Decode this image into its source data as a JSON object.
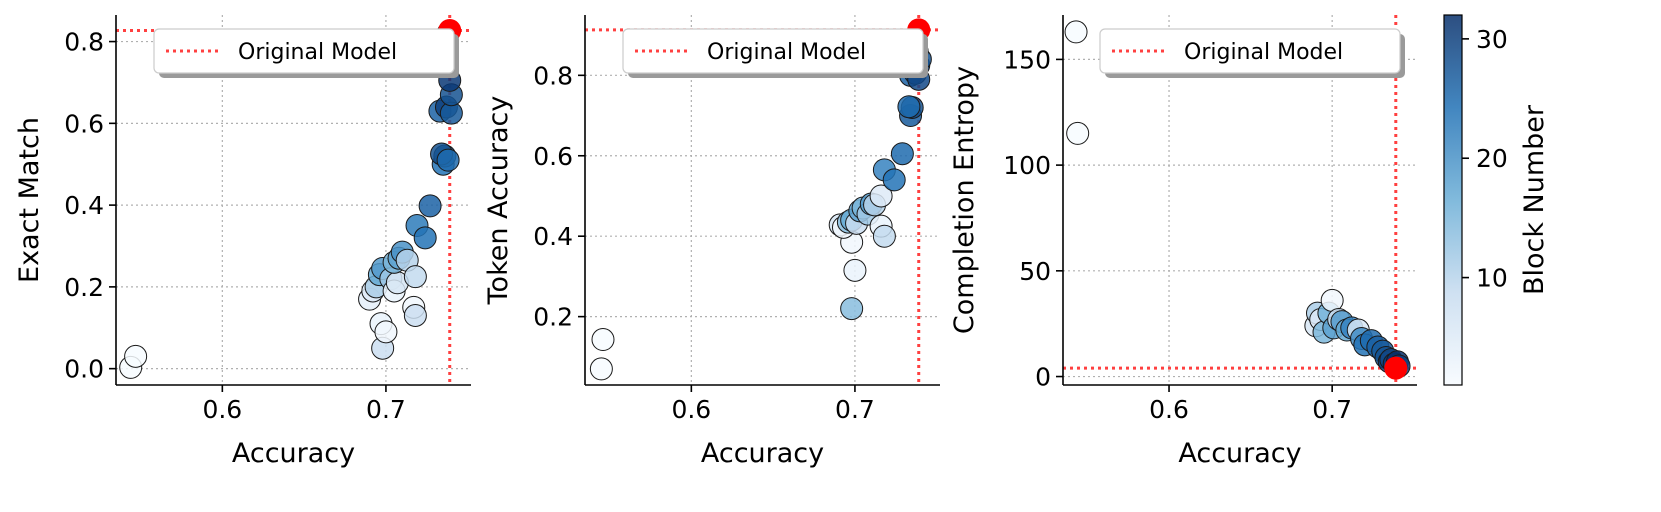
{
  "chart_data": [
    {
      "type": "scatter",
      "xlabel": "Accuracy",
      "ylabel": "Exact Match",
      "xlim": [
        0.535,
        0.752
      ],
      "ylim": [
        -0.04,
        0.865
      ],
      "xticks": [
        0.6,
        0.7
      ],
      "xtick_labels": [
        "0.6",
        "0.7"
      ],
      "yticks": [
        0.0,
        0.2,
        0.4,
        0.6,
        0.8
      ],
      "ytick_labels": [
        "0.0",
        "0.2",
        "0.4",
        "0.6",
        "0.8"
      ],
      "grid": true,
      "legend": {
        "entry": "Original Model",
        "placement": "top-right"
      },
      "original_model": {
        "x": 0.739,
        "y": 0.827
      },
      "points": [
        {
          "x": 0.544,
          "y": 0.003,
          "block": 1
        },
        {
          "x": 0.547,
          "y": 0.03,
          "block": 1
        },
        {
          "x": 0.698,
          "y": 0.05,
          "block": 8
        },
        {
          "x": 0.697,
          "y": 0.11,
          "block": 3
        },
        {
          "x": 0.7,
          "y": 0.09,
          "block": 2
        },
        {
          "x": 0.717,
          "y": 0.15,
          "block": 2
        },
        {
          "x": 0.718,
          "y": 0.13,
          "block": 8
        },
        {
          "x": 0.69,
          "y": 0.17,
          "block": 4
        },
        {
          "x": 0.692,
          "y": 0.19,
          "block": 5
        },
        {
          "x": 0.694,
          "y": 0.2,
          "block": 11
        },
        {
          "x": 0.696,
          "y": 0.23,
          "block": 17
        },
        {
          "x": 0.698,
          "y": 0.245,
          "block": 19
        },
        {
          "x": 0.703,
          "y": 0.22,
          "block": 12
        },
        {
          "x": 0.705,
          "y": 0.19,
          "block": 3
        },
        {
          "x": 0.707,
          "y": 0.21,
          "block": 6
        },
        {
          "x": 0.705,
          "y": 0.26,
          "block": 15
        },
        {
          "x": 0.708,
          "y": 0.27,
          "block": 18
        },
        {
          "x": 0.71,
          "y": 0.285,
          "block": 20
        },
        {
          "x": 0.713,
          "y": 0.265,
          "block": 10
        },
        {
          "x": 0.718,
          "y": 0.225,
          "block": 9
        },
        {
          "x": 0.719,
          "y": 0.35,
          "block": 23
        },
        {
          "x": 0.724,
          "y": 0.32,
          "block": 24
        },
        {
          "x": 0.727,
          "y": 0.398,
          "block": 26
        },
        {
          "x": 0.735,
          "y": 0.5,
          "block": 24
        },
        {
          "x": 0.736,
          "y": 0.52,
          "block": 27
        },
        {
          "x": 0.734,
          "y": 0.525,
          "block": 28
        },
        {
          "x": 0.738,
          "y": 0.51,
          "block": 25
        },
        {
          "x": 0.733,
          "y": 0.63,
          "block": 26
        },
        {
          "x": 0.737,
          "y": 0.64,
          "block": 30
        },
        {
          "x": 0.74,
          "y": 0.625,
          "block": 27
        },
        {
          "x": 0.74,
          "y": 0.67,
          "block": 28
        },
        {
          "x": 0.739,
          "y": 0.705,
          "block": 31
        },
        {
          "x": 0.737,
          "y": 0.78,
          "block": 32
        },
        {
          "x": 0.738,
          "y": 0.82,
          "block": 29
        }
      ]
    },
    {
      "type": "scatter",
      "xlabel": "Accuracy",
      "ylabel": "Token Accuracy",
      "xlim": [
        0.535,
        0.752
      ],
      "ylim": [
        0.03,
        0.95
      ],
      "xticks": [
        0.6,
        0.7
      ],
      "xtick_labels": [
        "0.6",
        "0.7"
      ],
      "yticks": [
        0.2,
        0.4,
        0.6,
        0.8
      ],
      "ytick_labels": [
        "0.2",
        "0.4",
        "0.6",
        "0.8"
      ],
      "grid": true,
      "legend": {
        "entry": "Original Model",
        "placement": "top-right"
      },
      "original_model": {
        "x": 0.739,
        "y": 0.913
      },
      "points": [
        {
          "x": 0.545,
          "y": 0.07,
          "block": 1
        },
        {
          "x": 0.546,
          "y": 0.143,
          "block": 1
        },
        {
          "x": 0.698,
          "y": 0.22,
          "block": 14
        },
        {
          "x": 0.7,
          "y": 0.315,
          "block": 3
        },
        {
          "x": 0.698,
          "y": 0.385,
          "block": 2
        },
        {
          "x": 0.691,
          "y": 0.428,
          "block": 6
        },
        {
          "x": 0.693,
          "y": 0.422,
          "block": 2
        },
        {
          "x": 0.696,
          "y": 0.435,
          "block": 14
        },
        {
          "x": 0.698,
          "y": 0.44,
          "block": 17
        },
        {
          "x": 0.701,
          "y": 0.432,
          "block": 8
        },
        {
          "x": 0.703,
          "y": 0.463,
          "block": 18
        },
        {
          "x": 0.705,
          "y": 0.47,
          "block": 15
        },
        {
          "x": 0.708,
          "y": 0.455,
          "block": 12
        },
        {
          "x": 0.71,
          "y": 0.48,
          "block": 19
        },
        {
          "x": 0.712,
          "y": 0.478,
          "block": 10
        },
        {
          "x": 0.716,
          "y": 0.425,
          "block": 3
        },
        {
          "x": 0.718,
          "y": 0.4,
          "block": 9
        },
        {
          "x": 0.716,
          "y": 0.5,
          "block": 5
        },
        {
          "x": 0.718,
          "y": 0.565,
          "block": 22
        },
        {
          "x": 0.724,
          "y": 0.54,
          "block": 24
        },
        {
          "x": 0.729,
          "y": 0.605,
          "block": 25
        },
        {
          "x": 0.734,
          "y": 0.7,
          "block": 27
        },
        {
          "x": 0.735,
          "y": 0.72,
          "block": 28
        },
        {
          "x": 0.733,
          "y": 0.722,
          "block": 25
        },
        {
          "x": 0.734,
          "y": 0.8,
          "block": 26
        },
        {
          "x": 0.737,
          "y": 0.805,
          "block": 30
        },
        {
          "x": 0.739,
          "y": 0.79,
          "block": 29
        },
        {
          "x": 0.739,
          "y": 0.825,
          "block": 31
        },
        {
          "x": 0.74,
          "y": 0.84,
          "block": 28
        },
        {
          "x": 0.738,
          "y": 0.86,
          "block": 32
        },
        {
          "x": 0.737,
          "y": 0.89,
          "block": 30
        }
      ]
    },
    {
      "type": "scatter",
      "xlabel": "Accuracy",
      "ylabel": "Completion Entropy",
      "xlim": [
        0.535,
        0.752
      ],
      "ylim": [
        -4,
        171
      ],
      "xticks": [
        0.6,
        0.7
      ],
      "xtick_labels": [
        "0.6",
        "0.7"
      ],
      "yticks": [
        0,
        50,
        100,
        150
      ],
      "ytick_labels": [
        "0",
        "50",
        "100",
        "150"
      ],
      "grid": true,
      "legend": {
        "entry": "Original Model",
        "placement": "top-right"
      },
      "original_model": {
        "x": 0.739,
        "y": 4
      },
      "colorbar": {
        "label": "Block Number",
        "min": 1,
        "max": 32,
        "ticks": [
          10,
          20,
          30
        ],
        "tick_labels": [
          "10",
          "20",
          "30"
        ]
      },
      "points": [
        {
          "x": 0.543,
          "y": 163,
          "block": 1
        },
        {
          "x": 0.544,
          "y": 115,
          "block": 1
        },
        {
          "x": 0.69,
          "y": 24,
          "block": 6
        },
        {
          "x": 0.691,
          "y": 30,
          "block": 11
        },
        {
          "x": 0.693,
          "y": 27,
          "block": 5
        },
        {
          "x": 0.695,
          "y": 21,
          "block": 15
        },
        {
          "x": 0.698,
          "y": 30,
          "block": 16
        },
        {
          "x": 0.7,
          "y": 36,
          "block": 2
        },
        {
          "x": 0.701,
          "y": 23,
          "block": 18
        },
        {
          "x": 0.704,
          "y": 27,
          "block": 8
        },
        {
          "x": 0.706,
          "y": 26,
          "block": 19
        },
        {
          "x": 0.709,
          "y": 22,
          "block": 17
        },
        {
          "x": 0.712,
          "y": 23,
          "block": 22
        },
        {
          "x": 0.716,
          "y": 22,
          "block": 6
        },
        {
          "x": 0.718,
          "y": 18,
          "block": 21
        },
        {
          "x": 0.72,
          "y": 15,
          "block": 24
        },
        {
          "x": 0.724,
          "y": 17,
          "block": 25
        },
        {
          "x": 0.728,
          "y": 14,
          "block": 26
        },
        {
          "x": 0.731,
          "y": 12,
          "block": 27
        },
        {
          "x": 0.733,
          "y": 9,
          "block": 28
        },
        {
          "x": 0.735,
          "y": 7,
          "block": 30
        },
        {
          "x": 0.736,
          "y": 8,
          "block": 29
        },
        {
          "x": 0.738,
          "y": 6,
          "block": 31
        },
        {
          "x": 0.74,
          "y": 7,
          "block": 32
        },
        {
          "x": 0.741,
          "y": 5,
          "block": 30
        }
      ]
    }
  ]
}
